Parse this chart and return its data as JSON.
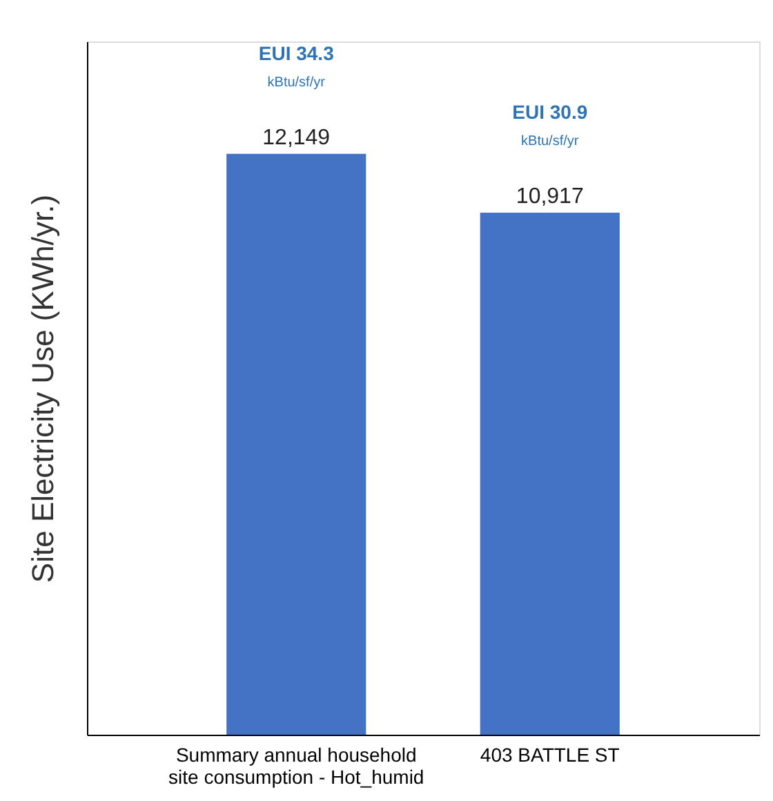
{
  "chart_data": {
    "type": "bar",
    "ylabel": "Site Electricity Use  (KWh/yr.)",
    "categories": [
      "Summary annual household\nsite consumption - Hot_humid",
      "403 BATTLE ST"
    ],
    "values": [
      12149,
      10917
    ],
    "value_labels": [
      "12,149",
      "10,917"
    ],
    "color": "#4472c4",
    "ylim": [
      0,
      14500
    ],
    "annotations": [
      "EUI 34.3",
      "kBtu/sf/yr",
      "EUI 30.9",
      "kBtu/sf/yr"
    ]
  }
}
